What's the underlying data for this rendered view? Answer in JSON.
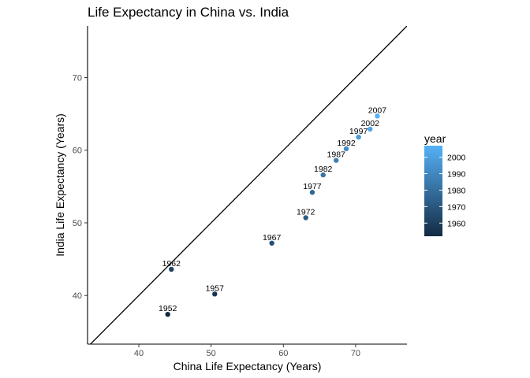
{
  "chart_data": {
    "type": "scatter",
    "title": "Life Expectancy in China vs. India",
    "xlabel": "China Life Expectancy (Years)",
    "ylabel": "India Life Expectancy (Years)",
    "xlim": [
      32.9,
      77.1
    ],
    "ylim": [
      33.3,
      77.1
    ],
    "xticks": [
      40,
      50,
      60,
      70
    ],
    "yticks": [
      40,
      50,
      60,
      70
    ],
    "reference_line": {
      "slope": 1,
      "intercept": 0
    },
    "legend": {
      "title": "year",
      "placement": "right",
      "type": "colorbar",
      "range": [
        1952,
        2007
      ],
      "ticks": [
        1960,
        1970,
        1980,
        1990,
        2000
      ],
      "color_low": "#132B43",
      "color_high": "#56B1F7"
    },
    "points": [
      {
        "label": "1952",
        "year": 1952,
        "x": 44.0,
        "y": 37.4
      },
      {
        "label": "1957",
        "year": 1957,
        "x": 50.5,
        "y": 40.2
      },
      {
        "label": "1962",
        "year": 1962,
        "x": 44.5,
        "y": 43.6
      },
      {
        "label": "1967",
        "year": 1967,
        "x": 58.4,
        "y": 47.2
      },
      {
        "label": "1972",
        "year": 1972,
        "x": 63.1,
        "y": 50.7
      },
      {
        "label": "1977",
        "year": 1977,
        "x": 64.0,
        "y": 54.2
      },
      {
        "label": "1982",
        "year": 1982,
        "x": 65.5,
        "y": 56.6
      },
      {
        "label": "1987",
        "year": 1987,
        "x": 67.3,
        "y": 58.6
      },
      {
        "label": "1992",
        "year": 1992,
        "x": 68.7,
        "y": 60.2
      },
      {
        "label": "1997",
        "year": 1997,
        "x": 70.4,
        "y": 61.8
      },
      {
        "label": "2002",
        "year": 2002,
        "x": 72.0,
        "y": 62.9
      },
      {
        "label": "2007",
        "year": 2007,
        "x": 73.0,
        "y": 64.7
      }
    ]
  }
}
